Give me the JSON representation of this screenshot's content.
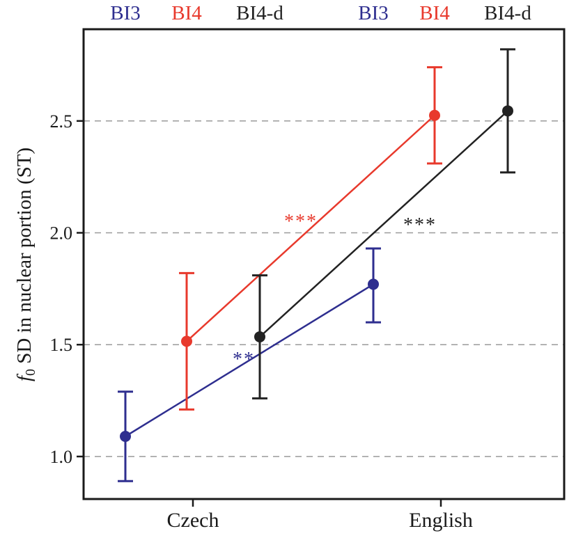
{
  "chart_data": {
    "type": "line",
    "ylabel_symbol": "f",
    "ylabel_subscript": "0",
    "ylabel_text": " SD in nuclear portion (ST)",
    "ylim": [
      0.81,
      2.91
    ],
    "yticks": [
      1.0,
      1.5,
      2.0,
      2.5
    ],
    "ytick_labels": [
      "1.0",
      "1.5",
      "2.0",
      "2.5"
    ],
    "grid": true,
    "categories": [
      "Czech",
      "English"
    ],
    "series": [
      {
        "name": "BI3",
        "color": "#2e2e8f",
        "values": [
          1.09,
          1.77
        ],
        "err_low": [
          0.89,
          1.6
        ],
        "err_high": [
          1.29,
          1.93
        ],
        "significance": "**"
      },
      {
        "name": "BI4",
        "color": "#e8392c",
        "values": [
          1.515,
          2.525
        ],
        "err_low": [
          1.21,
          2.31
        ],
        "err_high": [
          1.82,
          2.74
        ],
        "significance": "***"
      },
      {
        "name": "BI4-d",
        "color": "#222222",
        "values": [
          1.535,
          2.545
        ],
        "err_low": [
          1.26,
          2.27
        ],
        "err_high": [
          1.81,
          2.82
        ],
        "significance": "***"
      }
    ]
  }
}
